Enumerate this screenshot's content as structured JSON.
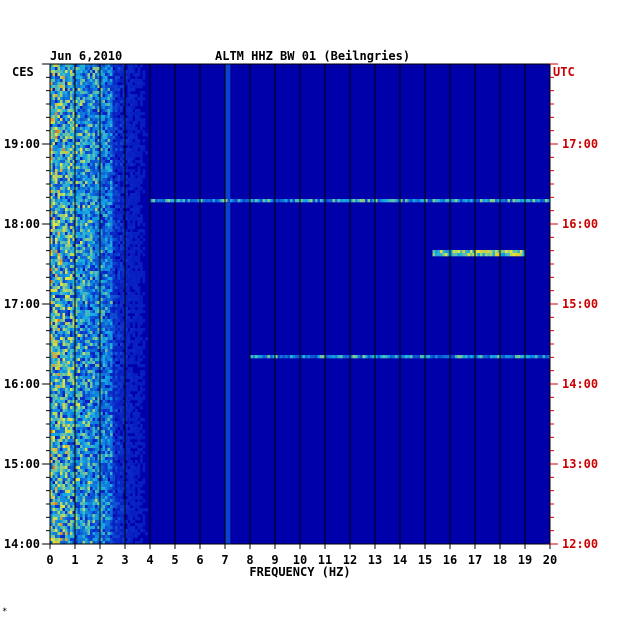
{
  "header": {
    "date": "Jun 6,2010",
    "station": "ALTM HHZ BW 01 (Beilngries)"
  },
  "footer_mark": "*",
  "colors": {
    "background": "#0000aa",
    "low": "#0a1fb8",
    "mid": "#11c8e0",
    "high": "#f0e040",
    "peak": "#d01010",
    "left_axis_text": "#000000",
    "right_axis_text": "#cc0000"
  },
  "chart_data": {
    "type": "heatmap",
    "title": "ALTM HHZ BW 01 (Beilngries)",
    "date": "Jun 6,2010",
    "xlabel": "FREQUENCY (HZ)",
    "xlim": [
      0,
      20
    ],
    "x_ticks": [
      "0",
      "1",
      "2",
      "3",
      "4",
      "5",
      "6",
      "7",
      "8",
      "9",
      "10",
      "11",
      "12",
      "13",
      "14",
      "15",
      "16",
      "17",
      "18",
      "19",
      "20"
    ],
    "left_axis": {
      "label": "CES",
      "time_range": [
        "14:00",
        "20:00"
      ],
      "ticks": [
        "19:00",
        "18:00",
        "17:00",
        "16:00",
        "15:00",
        "14:00"
      ]
    },
    "right_axis": {
      "label": "UTC",
      "time_range": [
        "12:00",
        "18:00"
      ],
      "ticks": [
        "17:00",
        "16:00",
        "15:00",
        "14:00",
        "13:00",
        "12:00"
      ]
    },
    "grid": true,
    "features": [
      {
        "name": "broadband noise",
        "freq_range_hz": [
          0,
          4
        ],
        "intensity": "high"
      },
      {
        "name": "constant line",
        "freq_hz": 7.1,
        "intensity": "medium"
      },
      {
        "name": "burst",
        "time_ces": "17:38",
        "freq_range_hz": [
          15.3,
          19
        ],
        "intensity": "high"
      },
      {
        "name": "burst",
        "time_ces": "18:18",
        "freq_range_hz": [
          4,
          20
        ],
        "intensity": "medium"
      },
      {
        "name": "burst",
        "time_ces": "16:20",
        "freq_range_hz": [
          8,
          20
        ],
        "intensity": "medium"
      }
    ]
  }
}
